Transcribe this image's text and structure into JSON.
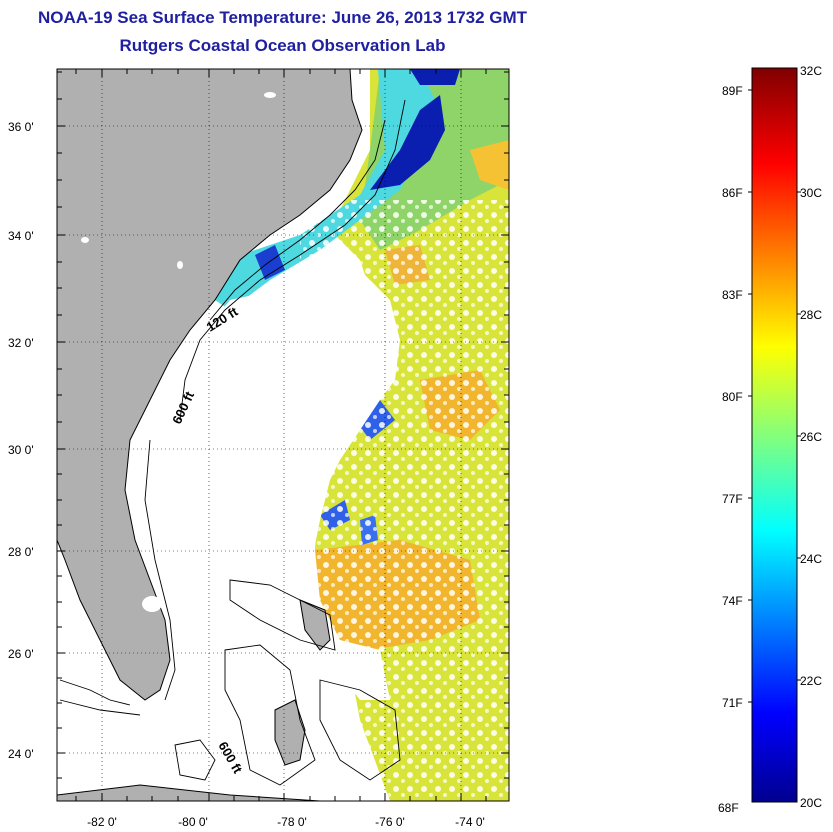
{
  "title": {
    "line1": "NOAA-19 Sea Surface Temperature:  June 26, 2013 1732 GMT",
    "line2": "Rutgers Coastal Ocean Observation Lab"
  },
  "map": {
    "lat_ticks": [
      "36 0'",
      "34 0'",
      "32 0'",
      "30 0'",
      "28 0'",
      "26 0'",
      "24 0'"
    ],
    "lon_ticks": [
      "-82 0'",
      "-80 0'",
      "-78 0'",
      "-76 0'",
      "-74 0'"
    ],
    "contour_labels": [
      "120 ft",
      "600 ft",
      "600 ft"
    ],
    "land_color": "#b0b0b0",
    "cloud_color": "#ffffff"
  },
  "colorbar": {
    "celsius_labels": [
      "32C",
      "30C",
      "28C",
      "26C",
      "24C",
      "22C",
      "20C"
    ],
    "fahrenheit_labels": [
      "89F",
      "86F",
      "83F",
      "80F",
      "77F",
      "74F",
      "71F",
      "68F"
    ],
    "colormap": [
      "#00008f",
      "#0000ff",
      "#00ffff",
      "#ffff00",
      "#ff0000",
      "#800000"
    ]
  }
}
